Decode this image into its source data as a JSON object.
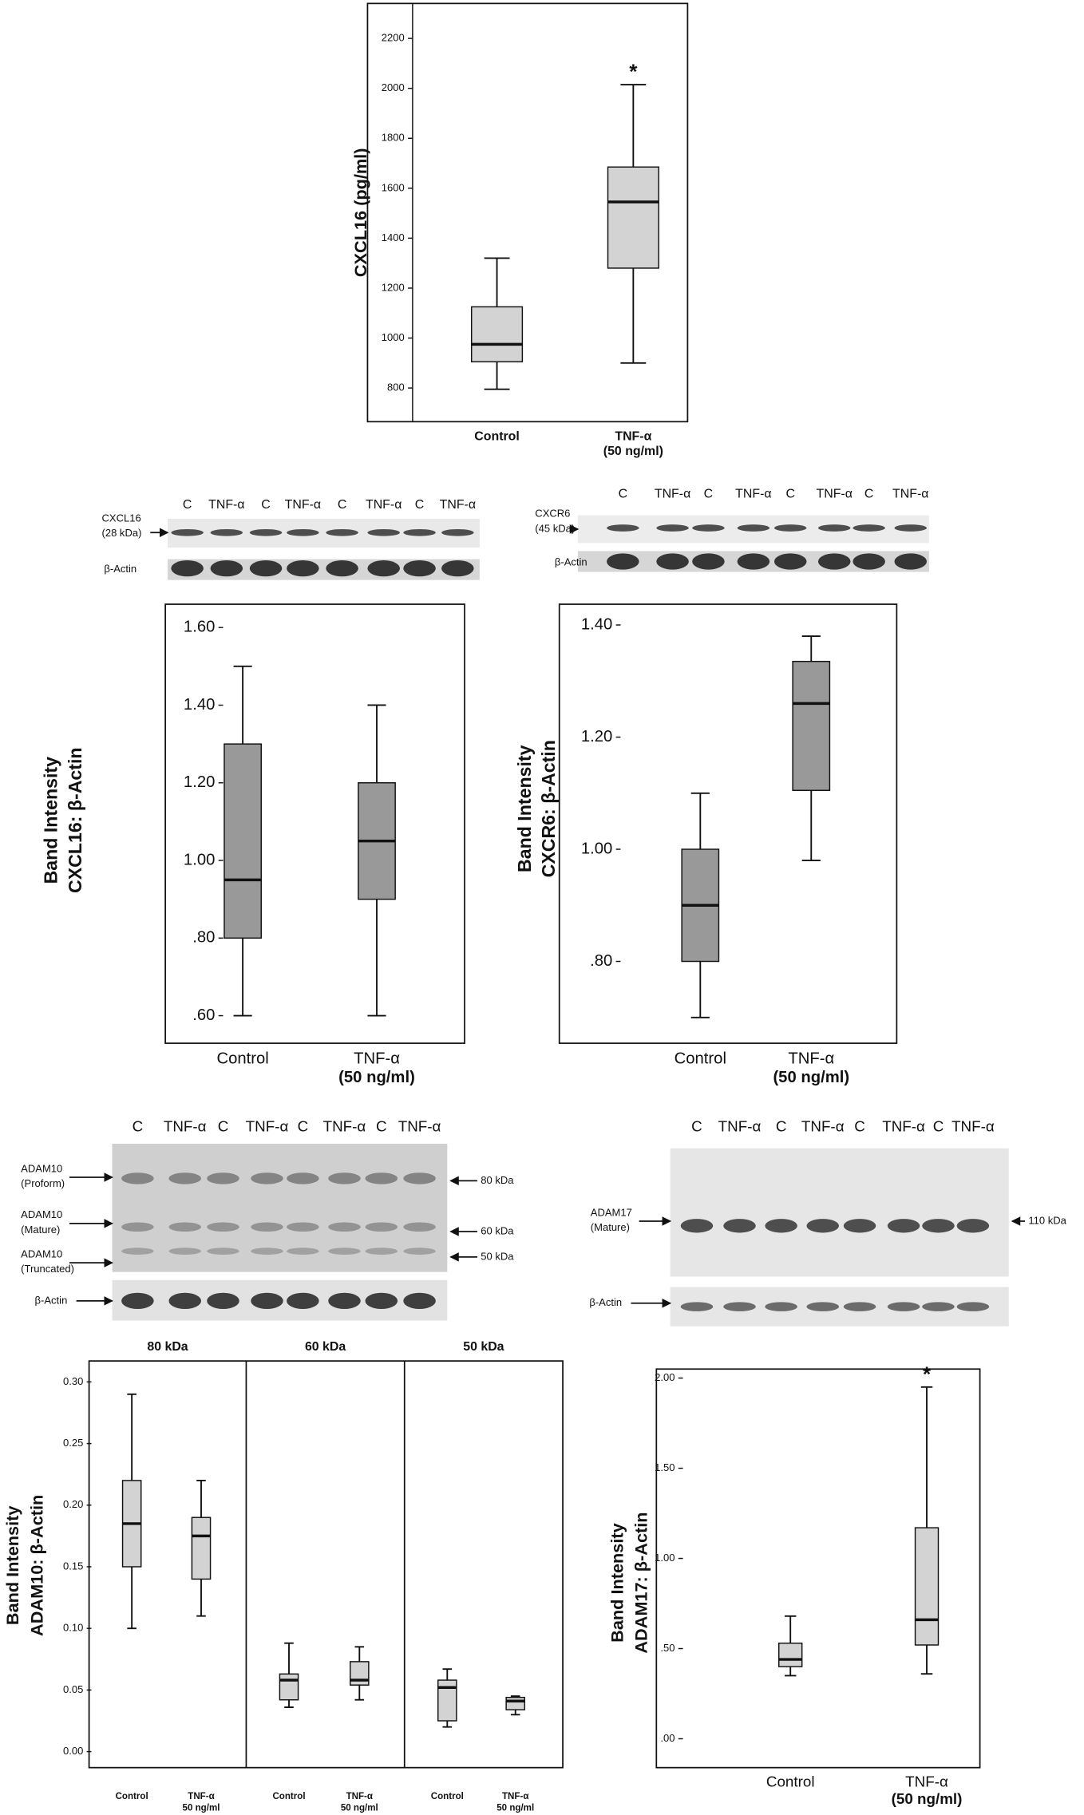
{
  "chart_data": [
    {
      "type": "box",
      "y_label": [
        "CXCL16 (pg/ml)"
      ],
      "color": "#d3d3d3",
      "categories": [
        [
          "Control"
        ],
        [
          "TNF-α",
          "(50 ng/ml)"
        ]
      ],
      "min": [
        795,
        900
      ],
      "q1": [
        905,
        1280
      ],
      "median": [
        975,
        1545
      ],
      "q3": [
        1125,
        1685
      ],
      "max": [
        1320,
        2015
      ],
      "significance": [
        null,
        "*"
      ],
      "ylim": [
        665,
        2340
      ],
      "yticks": [
        800,
        1000,
        1200,
        1400,
        1600,
        1800,
        2000,
        2200
      ]
    },
    {
      "type": "box",
      "y_label": [
        "Band Intensity",
        "CXCL16: β-Actin"
      ],
      "color": "#999999",
      "categories": [
        [
          "Control"
        ],
        [
          "TNF-α",
          "(50 ng/ml)"
        ]
      ],
      "min": [
        0.6,
        0.6
      ],
      "q1": [
        0.8,
        0.9
      ],
      "median": [
        0.95,
        1.05
      ],
      "q3": [
        1.3,
        1.2
      ],
      "max": [
        1.5,
        1.4
      ],
      "ylim": [
        0.529,
        1.66
      ],
      "yticks": [
        {
          "value": 0.6,
          "label": ".60"
        },
        {
          "value": 0.8,
          "label": ".80"
        },
        {
          "value": 1,
          "label": "1.00"
        },
        {
          "value": 1.2,
          "label": "1.20"
        },
        {
          "value": 1.4,
          "label": "1.40"
        },
        {
          "value": 1.6,
          "label": "1.60"
        }
      ]
    },
    {
      "type": "box",
      "y_label": [
        "Band Intensity",
        "CXCR6: β-Actin"
      ],
      "color": "#999999",
      "categories": [
        [
          "Control"
        ],
        [
          "TNF-α",
          "(50 ng/ml)"
        ]
      ],
      "min": [
        0.7,
        0.98
      ],
      "q1": [
        0.8,
        1.105
      ],
      "median": [
        0.9,
        1.26
      ],
      "q3": [
        1.0,
        1.335
      ],
      "max": [
        1.1,
        1.38
      ],
      "ylim": [
        0.654,
        1.437
      ],
      "yticks": [
        {
          "value": 0.8,
          "label": ".80"
        },
        {
          "value": 1,
          "label": "1.00"
        },
        {
          "value": 1.2,
          "label": "1.20"
        },
        {
          "value": 1.4,
          "label": "1.40"
        }
      ]
    },
    {
      "type": "box-panels",
      "y_label": [
        "Band Intensity",
        "ADAM10: β-Actin"
      ],
      "color": "#d3d3d3",
      "ylim": [
        -0.013,
        0.317
      ],
      "yticks": [
        {
          "value": 0,
          "label": "0.00"
        },
        {
          "value": 0.05,
          "label": "0.05"
        },
        {
          "value": 0.1,
          "label": "0.10"
        },
        {
          "value": 0.15,
          "label": "0.15"
        },
        {
          "value": 0.2,
          "label": "0.20"
        },
        {
          "value": 0.25,
          "label": "0.25"
        },
        {
          "value": 0.3,
          "label": "0.30"
        }
      ],
      "panels": [
        {
          "title": "80 kDa",
          "categories": [
            [
              "Control"
            ],
            [
              "TNF-α",
              "50 ng/ml"
            ]
          ],
          "min": [
            0.1,
            0.11
          ],
          "q1": [
            0.15,
            0.14
          ],
          "median": [
            0.185,
            0.175
          ],
          "q3": [
            0.22,
            0.19
          ],
          "max": [
            0.29,
            0.22
          ]
        },
        {
          "title": "60 kDa",
          "categories": [
            [
              "Control"
            ],
            [
              "TNF-α",
              "50 ng/ml"
            ]
          ],
          "min": [
            0.036,
            0.042
          ],
          "q1": [
            0.042,
            0.054
          ],
          "median": [
            0.058,
            0.058
          ],
          "q3": [
            0.063,
            0.073
          ],
          "max": [
            0.088,
            0.085
          ]
        },
        {
          "title": "50 kDa",
          "categories": [
            [
              "Control"
            ],
            [
              "TNF-α",
              "50 ng/ml"
            ]
          ],
          "min": [
            0.02,
            0.03
          ],
          "q1": [
            0.025,
            0.034
          ],
          "median": [
            0.052,
            0.041
          ],
          "q3": [
            0.058,
            0.044
          ],
          "max": [
            0.067,
            0.045
          ]
        }
      ]
    },
    {
      "type": "box",
      "y_label": [
        "Band Intensity",
        "ADAM17: β-Actin"
      ],
      "color": "#d3d3d3",
      "categories": [
        [
          "Control"
        ],
        [
          "TNF-α",
          "(50 ng/ml)"
        ]
      ],
      "min": [
        0.35,
        0.36
      ],
      "q1": [
        0.4,
        0.52
      ],
      "median": [
        0.44,
        0.66
      ],
      "q3": [
        0.53,
        1.17
      ],
      "max": [
        0.68,
        1.95
      ],
      "significance": [
        null,
        "*"
      ],
      "ylim": [
        -0.16,
        2.05
      ],
      "yticks": [
        {
          "value": 0,
          "label": ".00"
        },
        {
          "value": 0.5,
          "label": ".50"
        },
        {
          "value": 1,
          "label": "1.00"
        },
        {
          "value": 1.5,
          "label": "1.50"
        },
        {
          "value": 2,
          "label": "2.00"
        }
      ]
    }
  ],
  "blots": [
    {
      "lanes": [
        "C",
        "TNF-α",
        "C",
        "TNF-α",
        "C",
        "TNF-α",
        "C",
        "TNF-α"
      ],
      "bands": [
        [
          "CXCL16",
          "(28 kDa)"
        ],
        [
          "β-Actin"
        ]
      ]
    },
    {
      "lanes": [
        "C",
        "TNF-α",
        "C",
        "TNF-α",
        "C",
        "TNF-α",
        "C",
        "TNF-α"
      ],
      "bands": [
        [
          "CXCR6",
          "(45 kDa)"
        ],
        [
          "β-Actin"
        ]
      ]
    },
    {
      "lanes": [
        "C",
        "TNF-α",
        "C",
        "TNF-α",
        "C",
        "TNF-α",
        "C",
        "TNF-α"
      ],
      "bands": [
        [
          "ADAM10",
          "(Proform)"
        ],
        [
          "ADAM10",
          "(Mature)"
        ],
        [
          "ADAM10",
          "(Truncated)"
        ],
        [
          "β-Actin"
        ]
      ],
      "sizes": [
        "80 kDa",
        "60 kDa",
        "50 kDa"
      ]
    },
    {
      "lanes": [
        "C",
        "TNF-α",
        "C",
        "TNF-α",
        "C",
        "TNF-α",
        "C",
        "TNF-α"
      ],
      "bands": [
        [
          "ADAM17",
          "(Mature)"
        ],
        [
          "β-Actin"
        ]
      ],
      "sizes": [
        "110 kDa"
      ]
    }
  ]
}
